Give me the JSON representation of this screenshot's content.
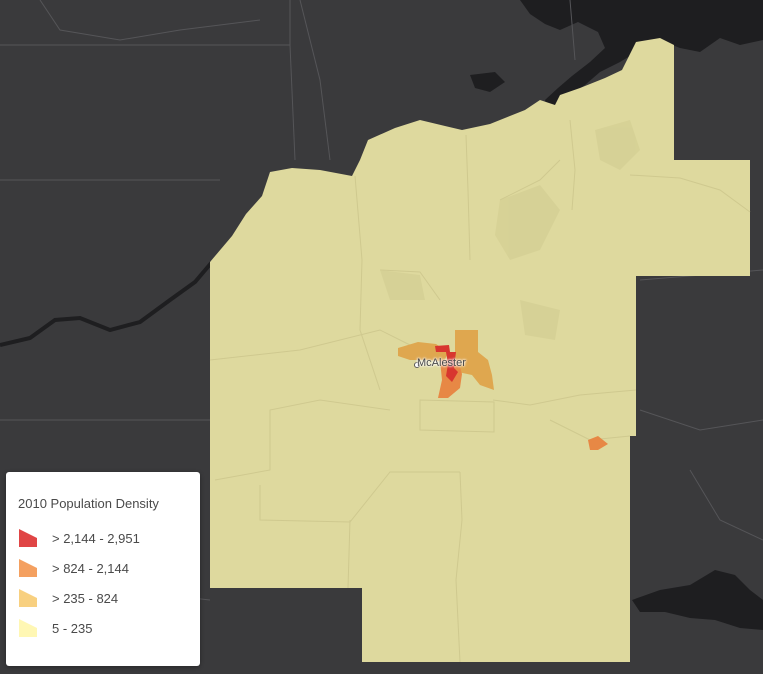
{
  "map": {
    "city_label": "McAlester",
    "colors": {
      "background": "#3a3a3c",
      "water": "#1e1e20",
      "county_fill": "#ded99e",
      "tract_border": "#cfc98f",
      "class_1": "#e03a3a",
      "class_2": "#f0884e",
      "class_3": "#f5c977",
      "class_4": "#fff7b4"
    }
  },
  "legend": {
    "title": "2010 Population Density",
    "items": [
      {
        "label": "> 2,144 - 2,951",
        "color": "#e04545"
      },
      {
        "label": "> 824 - 2,144",
        "color": "#f4a060"
      },
      {
        "label": "> 235 - 824",
        "color": "#f8d080"
      },
      {
        "label": "5 - 235",
        "color": "#fff7b4"
      }
    ]
  }
}
